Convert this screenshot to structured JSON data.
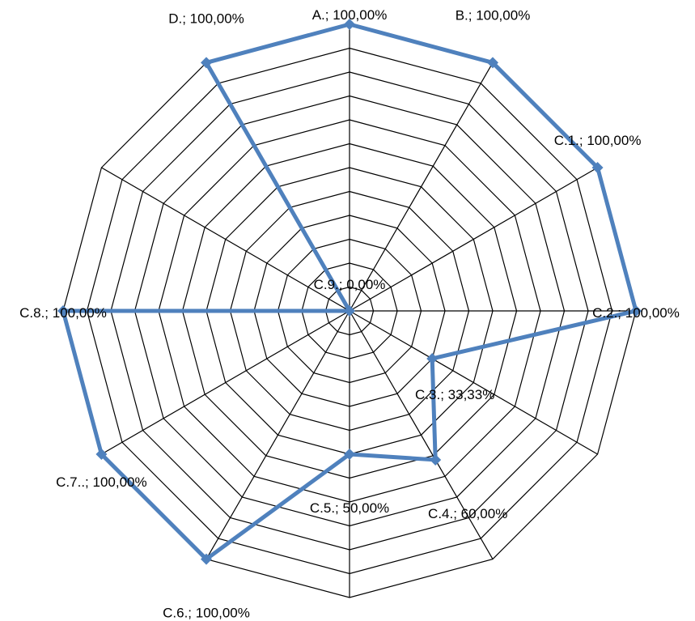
{
  "chart_data": {
    "type": "radar",
    "title": "",
    "categories": [
      "A.",
      "B.",
      "C.1.",
      "C.2.",
      "C.3.",
      "C.4.",
      "C.5.",
      "C.6.",
      "C.7..",
      "C.8.",
      "C.9.",
      "D."
    ],
    "series": [
      {
        "values": [
          100,
          100,
          100,
          100,
          33.33,
          60,
          50,
          100,
          100,
          100,
          0,
          100
        ],
        "color": "#4F81BD"
      }
    ],
    "data_labels": [
      "A.; 100,00%",
      "B.; 100,00%",
      "C.1.; 100,00%",
      "C.2.; 100,00%",
      "C.3.; 33,33%",
      "C.4.; 60,00%",
      "C.5.; 50,00%",
      "C.6.; 100,00%",
      "C.7..; 100,00%",
      "C.8.; 100,00%",
      "C.9.; 0,00%",
      "D.; 100,00%"
    ],
    "rlim": [
      0,
      100
    ],
    "grid_rings": 12,
    "gridlines": true,
    "legend": "none",
    "marker": "diamond"
  }
}
